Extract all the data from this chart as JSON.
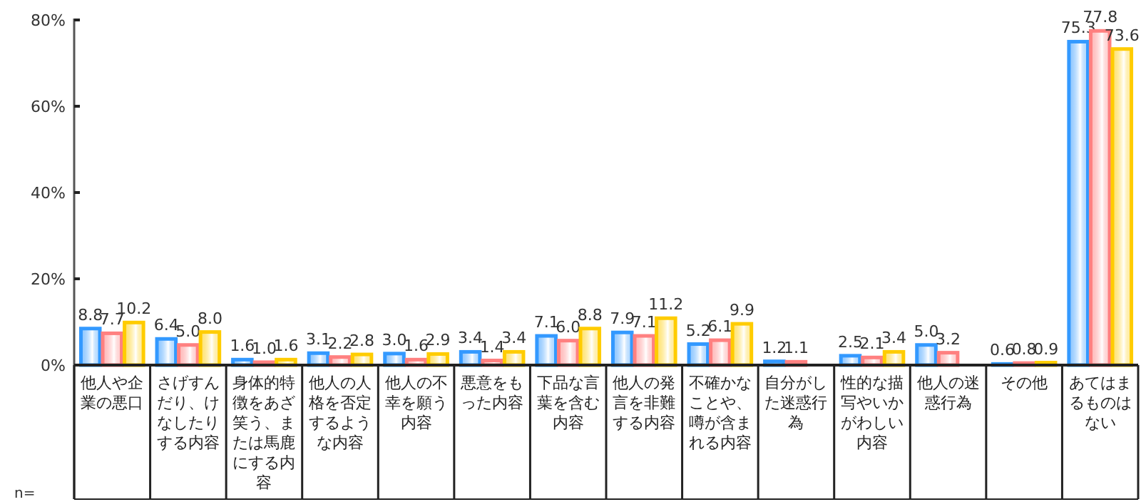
{
  "chart_data": {
    "type": "bar",
    "categories": [
      "他人や企業の悪口",
      "さげすんだり、けなしたりする内容",
      "身体的特徴をあざ笑う、または馬鹿にする内容",
      "他人の人格を否定するような内容",
      "他人の不幸を願う内容",
      "悪意をもった内容",
      "下品な言葉を含む内容",
      "他人の発言を非難する内容",
      "不確かなことや、噂が含まれる内容",
      "自分がした迷惑行為",
      "性的な描写やいかがわしい内容",
      "他人の迷惑行為",
      "その他",
      "あてはまるものはない"
    ],
    "series": [
      {
        "color": "#3399ff",
        "values": [
          8.8,
          6.4,
          1.6,
          3.1,
          3.0,
          3.4,
          7.1,
          7.9,
          5.2,
          1.2,
          2.5,
          5.0,
          0.6,
          75.3
        ],
        "value_labels": [
          "8.8",
          "6.4",
          "1.6",
          "3.1",
          "3.0",
          "3.4",
          "7.1",
          "7.9",
          "5.2",
          "1.2",
          "2.5",
          "5.0",
          "0.6",
          "75.3"
        ]
      },
      {
        "color": "#ff8080",
        "values": [
          7.7,
          5.0,
          1.0,
          2.2,
          1.6,
          1.4,
          6.0,
          7.1,
          6.1,
          1.1,
          2.1,
          3.2,
          0.8,
          77.8
        ],
        "value_labels": [
          "7.7",
          "5.0",
          "1.0",
          "2.2",
          "1.6",
          "1.4",
          "6.0",
          "7.1",
          "6.1",
          "1.1",
          "2.1",
          "3.2",
          "0.8",
          "77.8"
        ]
      },
      {
        "color": "#ffcc00",
        "values": [
          10.2,
          8.0,
          1.6,
          2.8,
          2.9,
          3.4,
          8.8,
          11.2,
          9.9,
          null,
          3.4,
          null,
          0.9,
          73.6
        ],
        "value_labels": [
          "10.2",
          "8.0",
          "1.6",
          "2.8",
          "2.9",
          "3.4",
          "8.8",
          "11.2",
          "9.9",
          null,
          "3.4",
          null,
          "0.9",
          "73.6"
        ]
      }
    ],
    "ylim": [
      0,
      80
    ],
    "yticks": [
      {
        "value": 0,
        "label": "0%"
      },
      {
        "value": 20,
        "label": "20%"
      },
      {
        "value": 40,
        "label": "40%"
      },
      {
        "value": 60,
        "label": "60%"
      },
      {
        "value": 80,
        "label": "80%"
      }
    ],
    "grid": false,
    "annotations": [
      "n="
    ]
  }
}
